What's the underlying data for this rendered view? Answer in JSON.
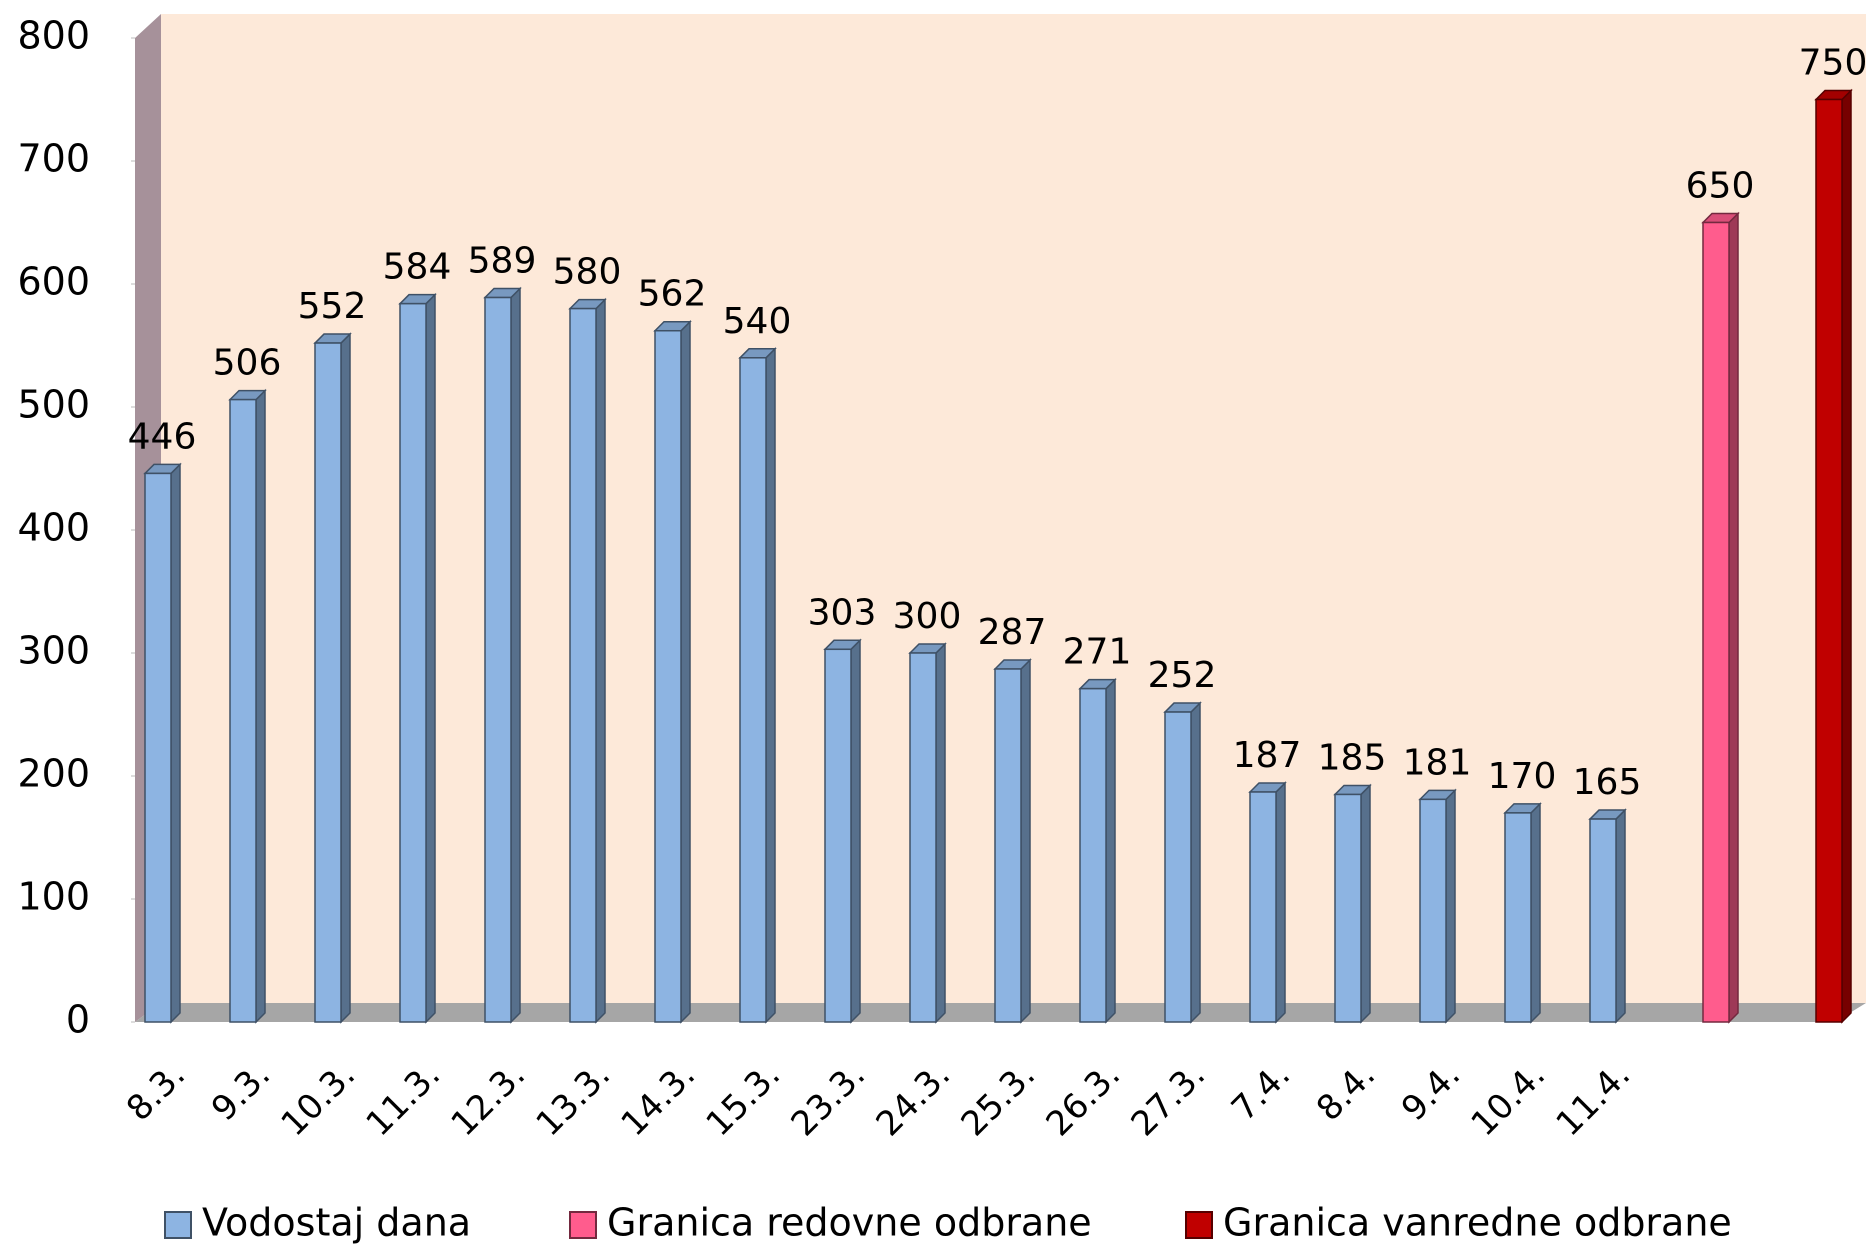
{
  "chart_data": {
    "type": "bar3d",
    "categories": [
      "8.3.",
      "9.3.",
      "10.3.",
      "11.3.",
      "12.3.",
      "13.3.",
      "14.3.",
      "15.3.",
      "23.3.",
      "24.3.",
      "25.3.",
      "26.3.",
      "27.3.",
      "7.4.",
      "8.4.",
      "9.4.",
      "10.4.",
      "11.4.",
      null,
      null
    ],
    "series": [
      {
        "name": "Vodostaj dana",
        "color": "#8db4e2",
        "values": [
          446,
          506,
          552,
          584,
          589,
          580,
          562,
          540,
          303,
          300,
          287,
          271,
          252,
          187,
          185,
          181,
          170,
          165,
          null,
          null
        ]
      },
      {
        "name": "Granica redovne odbrane",
        "color": "#ff5c8d",
        "values": [
          null,
          null,
          null,
          null,
          null,
          null,
          null,
          null,
          null,
          null,
          null,
          null,
          null,
          null,
          null,
          null,
          null,
          null,
          650,
          null
        ]
      },
      {
        "name": "Granica vanredne odbrane",
        "color": "#c00000",
        "values": [
          null,
          null,
          null,
          null,
          null,
          null,
          null,
          null,
          null,
          null,
          null,
          null,
          null,
          null,
          null,
          null,
          null,
          null,
          null,
          750
        ]
      }
    ],
    "ylim": [
      0,
      800
    ],
    "yticks": [
      0,
      100,
      200,
      300,
      400,
      500,
      600,
      700,
      800
    ],
    "legend": "bottom"
  }
}
